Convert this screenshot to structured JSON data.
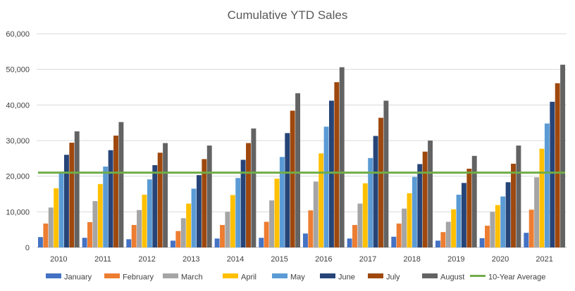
{
  "chart_data": {
    "type": "bar",
    "title": "Cumulative YTD Sales",
    "xlabel": "",
    "ylabel": "",
    "categories": [
      "2010",
      "2011",
      "2012",
      "2013",
      "2014",
      "2015",
      "2016",
      "2017",
      "2018",
      "2019",
      "2020",
      "2021"
    ],
    "ylim": [
      0,
      60000
    ],
    "yticks": [
      0,
      10000,
      20000,
      30000,
      40000,
      50000,
      60000
    ],
    "ytick_labels": [
      "0",
      "10,000",
      "20,000",
      "30,000",
      "40,000",
      "50,000",
      "60,000"
    ],
    "grid": true,
    "legend_position": "bottom",
    "series": [
      {
        "name": "January",
        "color": "#4472C4",
        "values": [
          2900,
          2700,
          2300,
          1900,
          2500,
          2700,
          3900,
          2500,
          3000,
          1900,
          2600,
          4100
        ]
      },
      {
        "name": "February",
        "color": "#ED7D31",
        "values": [
          6700,
          7100,
          6300,
          4600,
          6300,
          7200,
          10400,
          6300,
          6700,
          4300,
          6100,
          10600
        ]
      },
      {
        "name": "March",
        "color": "#A5A5A5",
        "values": [
          11200,
          13000,
          10500,
          8200,
          10000,
          13200,
          18500,
          12300,
          10900,
          7200,
          10000,
          19700
        ]
      },
      {
        "name": "April",
        "color": "#FFC000",
        "values": [
          16600,
          17800,
          14800,
          12300,
          14700,
          19300,
          26400,
          18000,
          15200,
          10700,
          11900,
          27700
        ]
      },
      {
        "name": "May",
        "color": "#5B9BD5",
        "values": [
          21300,
          22700,
          19100,
          16500,
          19500,
          25400,
          33900,
          25100,
          19800,
          14800,
          14300,
          34800
        ]
      },
      {
        "name": "June",
        "color": "#264478",
        "values": [
          26000,
          27300,
          23100,
          20300,
          24600,
          32100,
          41200,
          31300,
          23400,
          18100,
          18300,
          40900
        ]
      },
      {
        "name": "July",
        "color": "#9E480E",
        "values": [
          29400,
          31400,
          26600,
          24800,
          29300,
          38400,
          46400,
          36400,
          26900,
          22100,
          23500,
          46100
        ]
      },
      {
        "name": "August",
        "color": "#636363",
        "values": [
          32600,
          35200,
          29300,
          28600,
          33400,
          43300,
          50600,
          41200,
          30000,
          25700,
          28600,
          51300
        ]
      }
    ],
    "reference_line": {
      "name": "10-Year Average",
      "color": "#70AD47",
      "value": 21000
    }
  }
}
